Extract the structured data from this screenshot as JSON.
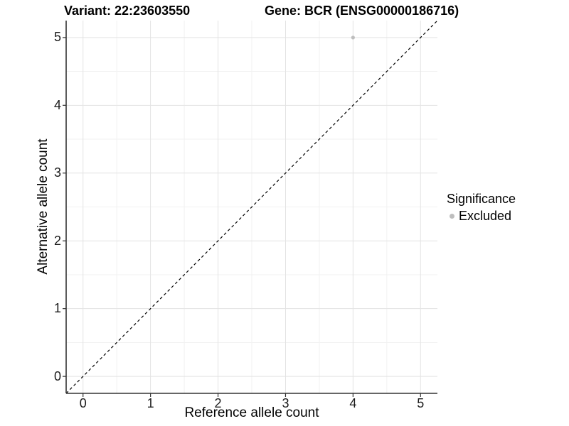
{
  "title": {
    "variant": "Variant: 22:23603550",
    "gene": "Gene: BCR (ENSG00000186716)"
  },
  "axes": {
    "x_label": "Reference allele count",
    "y_label": "Alternative allele count",
    "x_tick_labels": [
      "0",
      "1",
      "2",
      "3",
      "4",
      "5"
    ],
    "y_tick_labels": [
      "0",
      "1",
      "2",
      "3",
      "4",
      "5"
    ]
  },
  "legend": {
    "title": "Significance",
    "entries": [
      {
        "label": "Excluded",
        "color": "#bebebe"
      }
    ]
  },
  "colors": {
    "background": "#ffffff",
    "grid_major": "#e3e3e3",
    "grid_minor": "#f1f1f1",
    "axis_line": "#333333",
    "reference_line": "#000000",
    "point": "#bebebe",
    "text": "#000000"
  },
  "chart_data": {
    "type": "scatter",
    "title": "Variant: 22:23603550   Gene: BCR (ENSG00000186716)",
    "xlabel": "Reference allele count",
    "ylabel": "Alternative allele count",
    "xlim": [
      -0.25,
      5.25
    ],
    "ylim": [
      -0.25,
      5.25
    ],
    "x_ticks": [
      0,
      1,
      2,
      3,
      4,
      5
    ],
    "y_ticks": [
      0,
      1,
      2,
      3,
      4,
      5
    ],
    "minor_ticks": [
      0.5,
      1.5,
      2.5,
      3.5,
      4.5
    ],
    "grid": {
      "major": true,
      "minor": true
    },
    "series": [
      {
        "name": "Excluded",
        "color": "#bebebe",
        "marker": "circle",
        "marker_radius": 2.6,
        "points": [
          {
            "x": 4,
            "y": 5
          }
        ]
      }
    ],
    "reference_line": {
      "kind": "identity",
      "slope": 1,
      "intercept": 0,
      "style": "dashed",
      "color": "#000000"
    },
    "legend_position": "right",
    "legend_title": "Significance"
  }
}
